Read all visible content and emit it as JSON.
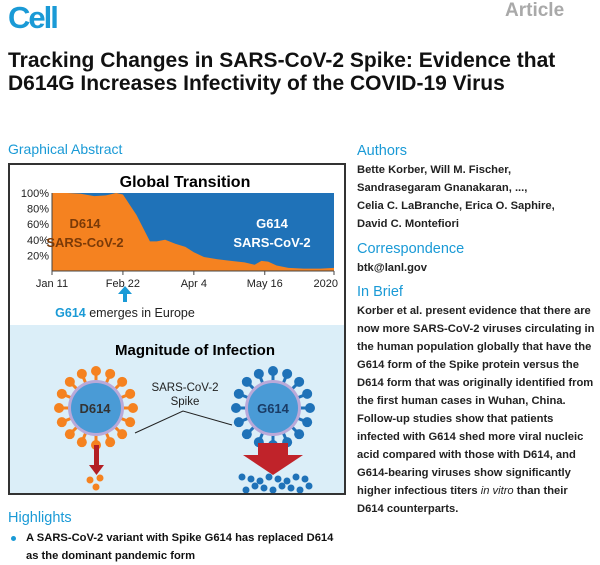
{
  "header": {
    "journal": "Cell",
    "type": "Article"
  },
  "title": "Tracking Changes in SARS-CoV-2 Spike: Evidence that D614G Increases Infectivity of the COVID-19 Virus",
  "graphical_abstract": {
    "heading": "Graphical Abstract",
    "top_title": "Global Transition",
    "area_label_d": [
      "D614",
      "SARS-CoV-2"
    ],
    "area_label_g": [
      "G614",
      "SARS-CoV-2"
    ],
    "emerges_strong": "G614",
    "emerges_rest": " emerges in Europe",
    "bottom_title": "Magnitude of Infection",
    "spike_label": [
      "SARS-CoV-2",
      "Spike"
    ],
    "virus_left": "D614",
    "virus_right": "G614",
    "colors": {
      "d614": "#f58220",
      "g614": "#1f72b8",
      "accent": "#1a9ad6",
      "arrow": "#c0232a"
    }
  },
  "chart_data": {
    "type": "area",
    "title": "Global Transition",
    "xlabel": "",
    "ylabel": "",
    "x_ticks": [
      "Jan 11",
      "Feb 22",
      "Apr 4",
      "May 16",
      "2020"
    ],
    "y_ticks": [
      "20%",
      "40%",
      "60%",
      "80%",
      "100%"
    ],
    "ylim": [
      0,
      100
    ],
    "xlim": [
      "2020-01-11",
      "2020-06-26"
    ],
    "series": [
      {
        "name": "D614 SARS-CoV-2",
        "color": "#f58220",
        "x": [
          "2020-01-11",
          "2020-01-20",
          "2020-01-28",
          "2020-02-05",
          "2020-02-12",
          "2020-02-18",
          "2020-02-22",
          "2020-02-26",
          "2020-03-01",
          "2020-03-05",
          "2020-03-09",
          "2020-03-13",
          "2020-03-18",
          "2020-03-24",
          "2020-03-30",
          "2020-04-04",
          "2020-04-10",
          "2020-04-18",
          "2020-04-26",
          "2020-05-04",
          "2020-05-10",
          "2020-05-14",
          "2020-05-18",
          "2020-05-23",
          "2020-05-30",
          "2020-06-08",
          "2020-06-18",
          "2020-06-26"
        ],
        "y": [
          100,
          100,
          99,
          96,
          97,
          100,
          98,
          85,
          72,
          55,
          38,
          38,
          40,
          35,
          31,
          24,
          18,
          15,
          13,
          11,
          8,
          13,
          12,
          7,
          4,
          3,
          3,
          4
        ]
      },
      {
        "name": "G614 SARS-CoV-2",
        "color": "#1f72b8",
        "fills_to": 100
      }
    ],
    "annotation": "G614 emerges in Europe",
    "grid": false
  },
  "authors": {
    "heading": "Authors",
    "lines": [
      "Bette Korber, Will M. Fischer,",
      "Sandrasegaram Gnanakaran, ...,",
      "Celia C. LaBranche, Erica O. Saphire,",
      "David C. Montefiori"
    ]
  },
  "correspondence": {
    "heading": "Correspondence",
    "email": "btk@lanl.gov"
  },
  "in_brief": {
    "heading": "In Brief",
    "text_before": "Korber et al. present evidence that there are now more SARS-CoV-2 viruses circulating in the human population globally that have the G614 form of the Spike protein versus the D614 form that was originally identified from the first human cases in Wuhan, China. Follow-up studies show that patients infected with G614 shed more viral nucleic acid compared with those with D614, and G614-bearing viruses show significantly higher infectious titers ",
    "italic": "in vitro",
    "text_after": " than their D614 counterparts."
  },
  "highlights": {
    "heading": "Highlights",
    "items": [
      "A SARS-CoV-2 variant with Spike G614 has replaced D614 as the dominant pandemic form"
    ]
  }
}
